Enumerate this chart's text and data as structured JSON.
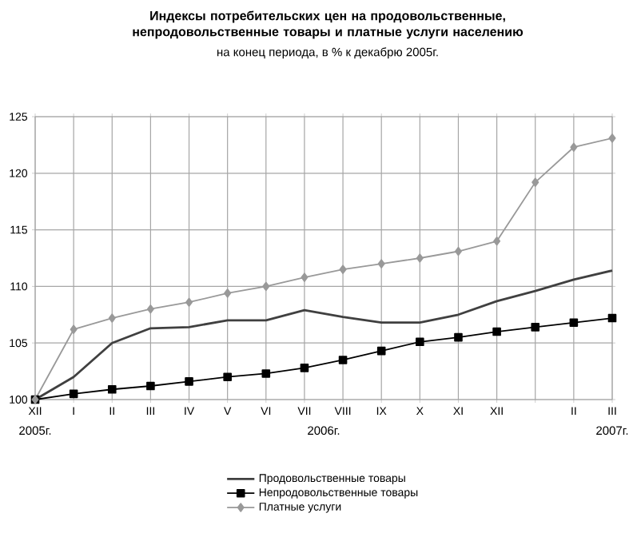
{
  "chart_data": {
    "type": "line",
    "title": "Индексы потребительских цен на продовольственные, непродовольственные товары и платные услуги населению",
    "subtitle": "на конец периода, в % к декабрю 2005г.",
    "categories": [
      "XII",
      "I",
      "II",
      "III",
      "IV",
      "V",
      "VI",
      "VII",
      "VIII",
      "IX",
      "X",
      "XI",
      "XII",
      null,
      "II",
      "III"
    ],
    "series": [
      {
        "name": "Продовольственные товары",
        "color": "#404040",
        "marker": "none",
        "values": [
          100,
          102,
          105,
          106.3,
          106.4,
          107,
          107,
          107.9,
          107.3,
          106.8,
          106.8,
          107.5,
          108.7,
          109.6,
          110.6,
          111.4
        ]
      },
      {
        "name": "Непродовольственные товары",
        "color": "#000000",
        "marker": "square",
        "values": [
          100,
          100.5,
          100.9,
          101.2,
          101.6,
          102,
          102.3,
          102.8,
          103.5,
          104.3,
          105.1,
          105.5,
          106,
          106.4,
          106.8,
          107.2
        ]
      },
      {
        "name": "Платные услуги",
        "color": "#999999",
        "marker": "diamond",
        "values": [
          100,
          106.2,
          107.2,
          108,
          108.6,
          109.4,
          110,
          110.8,
          111.5,
          112,
          112.5,
          113.1,
          114,
          119.2,
          122.3,
          123.1
        ]
      }
    ],
    "ylim": [
      100,
      125
    ],
    "yticks": [
      100,
      105,
      110,
      115,
      120,
      125
    ],
    "grid": true,
    "legend": "bottom",
    "annotations": [
      "2005г.",
      "2006г.",
      "2007г."
    ]
  }
}
